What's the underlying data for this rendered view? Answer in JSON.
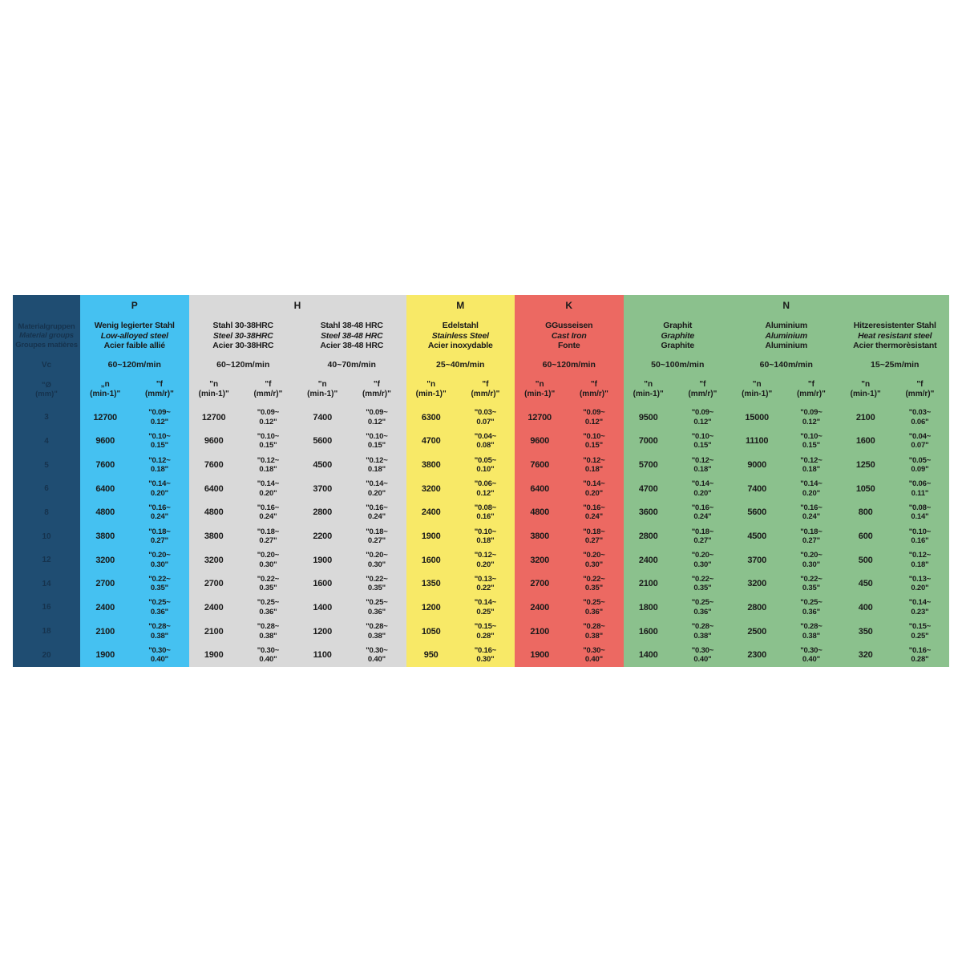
{
  "table": {
    "corner": {
      "bg_color": "#1f4d72",
      "text_color": "#16334e",
      "title_de": "Materialgruppen",
      "title_en": "Material groups",
      "title_fr": "Groupes matières",
      "speed_label": "Vc",
      "diameter_label": "\"Ø\n(mm)\""
    },
    "diameters": [
      "3",
      "4",
      "5",
      "6",
      "8",
      "10",
      "12",
      "14",
      "16",
      "18",
      "20"
    ],
    "groups": [
      {
        "letter": "P",
        "span": 1,
        "color": "#45c1f1"
      },
      {
        "letter": "H",
        "span": 2,
        "color": "#d9d9d9"
      },
      {
        "letter": "M",
        "span": 1,
        "color": "#f8e967"
      },
      {
        "letter": "K",
        "span": 1,
        "color": "#ec6962"
      },
      {
        "letter": "N",
        "span": 3,
        "color": "#8bc18d"
      }
    ],
    "columns": [
      {
        "group": "P",
        "color": "#45c1f1",
        "name_de": "Wenig legierter Stahl",
        "name_en": "Low-alloyed steel",
        "name_fr": "Acier faible allié",
        "speed": "60~120m/min",
        "n_header": "„n\n(min-1)\"",
        "f_header": "\"f\n(mm/r)\"",
        "n": [
          "12700",
          "9600",
          "7600",
          "6400",
          "4800",
          "3800",
          "3200",
          "2700",
          "2400",
          "2100",
          "1900"
        ],
        "f": [
          "\"0.09~\n0.12\"",
          "\"0.10~\n0.15\"",
          "\"0.12~\n0.18\"",
          "\"0.14~\n0.20\"",
          "\"0.16~\n0.24\"",
          "\"0.18~\n0.27\"",
          "\"0.20~\n0.30\"",
          "\"0.22~\n0.35\"",
          "\"0.25~\n0.36\"",
          "\"0.28~\n0.38\"",
          "\"0.30~\n0.40\""
        ]
      },
      {
        "group": "H",
        "color": "#d9d9d9",
        "name_de": "Stahl 30-38HRC",
        "name_en": "Steel 30-38HRC",
        "name_fr": "Acier 30-38HRC",
        "speed": "60~120m/min",
        "n_header": "\"n\n(min-1)\"",
        "f_header": "\"f\n(mm/r)\"",
        "n": [
          "12700",
          "9600",
          "7600",
          "6400",
          "4800",
          "3800",
          "3200",
          "2700",
          "2400",
          "2100",
          "1900"
        ],
        "f": [
          "\"0.09~\n0.12\"",
          "\"0.10~\n0.15\"",
          "\"0.12~\n0.18\"",
          "\"0.14~\n0.20\"",
          "\"0.16~\n0.24\"",
          "\"0.18~\n0.27\"",
          "\"0.20~\n0.30\"",
          "\"0.22~\n0.35\"",
          "\"0.25~\n0.36\"",
          "\"0.28~\n0.38\"",
          "\"0.30~\n0.40\""
        ]
      },
      {
        "group": "H",
        "color": "#d9d9d9",
        "name_de": "Stahl 38-48 HRC",
        "name_en": "Steel 38-48 HRC",
        "name_fr": "Acier 38-48 HRC",
        "speed": "40~70m/min",
        "n_header": "\"n\n(min-1)\"",
        "f_header": "\"f\n(mm/r)\"",
        "n": [
          "7400",
          "5600",
          "4500",
          "3700",
          "2800",
          "2200",
          "1900",
          "1600",
          "1400",
          "1200",
          "1100"
        ],
        "f": [
          "\"0.09~\n0.12\"",
          "\"0.10~\n0.15\"",
          "\"0.12~\n0.18\"",
          "\"0.14~\n0.20\"",
          "\"0.16~\n0.24\"",
          "\"0.18~\n0.27\"",
          "\"0.20~\n0.30\"",
          "\"0.22~\n0.35\"",
          "\"0.25~\n0.36\"",
          "\"0.28~\n0.38\"",
          "\"0.30~\n0.40\""
        ]
      },
      {
        "group": "M",
        "color": "#f8e967",
        "name_de": "Edelstahl",
        "name_en": "Stainless Steel",
        "name_fr": "Acier inoxydable",
        "speed": "25~40m/min",
        "n_header": "\"n\n(min-1)\"",
        "f_header": "\"f\n(mm/r)\"",
        "n": [
          "6300",
          "4700",
          "3800",
          "3200",
          "2400",
          "1900",
          "1600",
          "1350",
          "1200",
          "1050",
          "950"
        ],
        "f": [
          "\"0.03~\n0.07\"",
          "\"0.04~\n0.08\"",
          "\"0.05~\n0.10\"",
          "\"0.06~\n0.12\"",
          "\"0.08~\n0.16\"",
          "\"0.10~\n0.18\"",
          "\"0.12~\n0.20\"",
          "\"0.13~\n0.22\"",
          "\"0.14~\n0.25\"",
          "\"0.15~\n0.28\"",
          "\"0.16~\n0.30\""
        ]
      },
      {
        "group": "K",
        "color": "#ec6962",
        "name_de": "GGusseisen",
        "name_en": "Cast Iron",
        "name_fr": "Fonte",
        "speed": "60~120m/min",
        "n_header": "\"n\n(min-1)\"",
        "f_header": "\"f\n(mm/r)\"",
        "n": [
          "12700",
          "9600",
          "7600",
          "6400",
          "4800",
          "3800",
          "3200",
          "2700",
          "2400",
          "2100",
          "1900"
        ],
        "f": [
          "\"0.09~\n0.12\"",
          "\"0.10~\n0.15\"",
          "\"0.12~\n0.18\"",
          "\"0.14~\n0.20\"",
          "\"0.16~\n0.24\"",
          "\"0.18~\n0.27\"",
          "\"0.20~\n0.30\"",
          "\"0.22~\n0.35\"",
          "\"0.25~\n0.36\"",
          "\"0.28~\n0.38\"",
          "\"0.30~\n0.40\""
        ]
      },
      {
        "group": "N",
        "color": "#8bc18d",
        "name_de": "Graphit",
        "name_en": "Graphite",
        "name_fr": "Graphite",
        "speed": "50~100m/min",
        "n_header": "\"n\n(min-1)\"",
        "f_header": "\"f\n(mm/r)\"",
        "n": [
          "9500",
          "7000",
          "5700",
          "4700",
          "3600",
          "2800",
          "2400",
          "2100",
          "1800",
          "1600",
          "1400"
        ],
        "f": [
          "\"0.09~\n0.12\"",
          "\"0.10~\n0.15\"",
          "\"0.12~\n0.18\"",
          "\"0.14~\n0.20\"",
          "\"0.16~\n0.24\"",
          "\"0.18~\n0.27\"",
          "\"0.20~\n0.30\"",
          "\"0.22~\n0.35\"",
          "\"0.25~\n0.36\"",
          "\"0.28~\n0.38\"",
          "\"0.30~\n0.40\""
        ]
      },
      {
        "group": "N",
        "color": "#8bc18d",
        "name_de": "Aluminium",
        "name_en": "Aluminium",
        "name_fr": "Aluminium",
        "speed": "60~140m/min",
        "n_header": "\"n\n(min-1)\"",
        "f_header": "\"f\n(mm/r)\"",
        "n": [
          "15000",
          "11100",
          "9000",
          "7400",
          "5600",
          "4500",
          "3700",
          "3200",
          "2800",
          "2500",
          "2300"
        ],
        "f": [
          "\"0.09~\n0.12\"",
          "\"0.10~\n0.15\"",
          "\"0.12~\n0.18\"",
          "\"0.14~\n0.20\"",
          "\"0.16~\n0.24\"",
          "\"0.18~\n0.27\"",
          "\"0.20~\n0.30\"",
          "\"0.22~\n0.35\"",
          "\"0.25~\n0.36\"",
          "\"0.28~\n0.38\"",
          "\"0.30~\n0.40\""
        ]
      },
      {
        "group": "N",
        "color": "#8bc18d",
        "name_de": "Hitzeresistenter Stahl",
        "name_en": "Heat resistant steel",
        "name_fr": "Acier thermorèsistant",
        "speed": "15~25m/min",
        "n_header": "\"n\n(min-1)\"",
        "f_header": "\"f\n(mm/r)\"",
        "n": [
          "2100",
          "1600",
          "1250",
          "1050",
          "800",
          "600",
          "500",
          "450",
          "400",
          "350",
          "320"
        ],
        "f": [
          "\"0.03~\n0.06\"",
          "\"0.04~\n0.07\"",
          "\"0.05~\n0.09\"",
          "\"0.06~\n0.11\"",
          "\"0.08~\n0.14\"",
          "\"0.10~\n0.16\"",
          "\"0.12~\n0.18\"",
          "\"0.13~\n0.20\"",
          "\"0.14~\n0.23\"",
          "\"0.15~\n0.25\"",
          "\"0.16~\n0.28\""
        ]
      }
    ]
  }
}
